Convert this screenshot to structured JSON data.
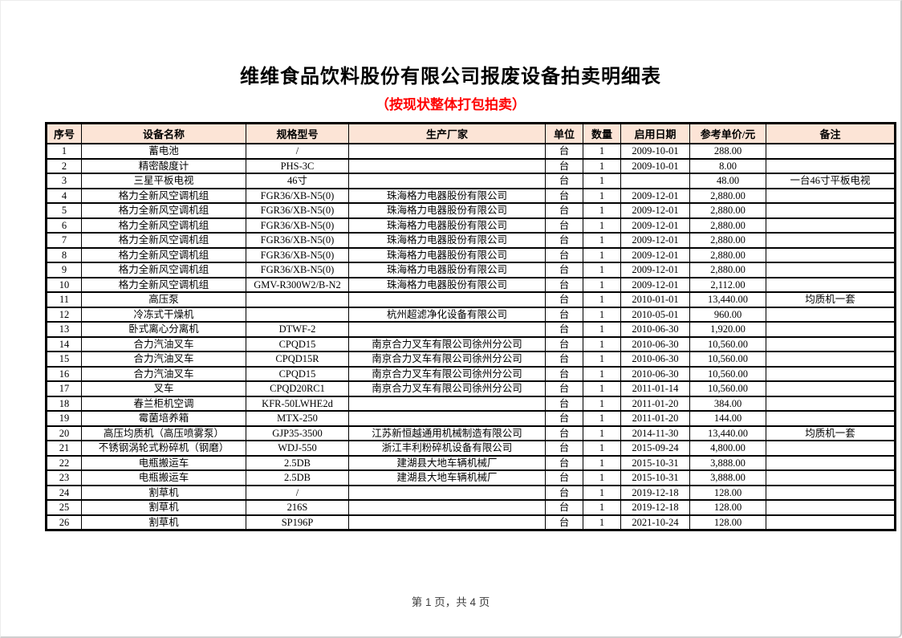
{
  "page": {
    "title": "维维食品饮料股份有限公司报废设备拍卖明细表",
    "subtitle": "（按现状整体打包拍卖）",
    "footer": "第 1 页，共 4 页"
  },
  "colors": {
    "header_fill": "#fce4d6",
    "subtitle_red": "#ff0000",
    "border": "#000000"
  },
  "table": {
    "columns": [
      "序号",
      "设备名称",
      "规格型号",
      "生产厂家",
      "单位",
      "数量",
      "启用日期",
      "参考单价/元",
      "备注"
    ],
    "rows": [
      [
        "1",
        "蓄电池",
        "/",
        "",
        "台",
        "1",
        "2009-10-01",
        "288.00",
        ""
      ],
      [
        "2",
        "精密酸度计",
        "PHS-3C",
        "",
        "台",
        "1",
        "2009-10-01",
        "8.00",
        ""
      ],
      [
        "3",
        "三星平板电视",
        "46寸",
        "",
        "台",
        "1",
        "",
        "48.00",
        "一台46寸平板电视"
      ],
      [
        "4",
        "格力全新风空调机组",
        "FGR36/XB-N5(0)",
        "珠海格力电器股份有限公司",
        "台",
        "1",
        "2009-12-01",
        "2,880.00",
        ""
      ],
      [
        "5",
        "格力全新风空调机组",
        "FGR36/XB-N5(0)",
        "珠海格力电器股份有限公司",
        "台",
        "1",
        "2009-12-01",
        "2,880.00",
        ""
      ],
      [
        "6",
        "格力全新风空调机组",
        "FGR36/XB-N5(0)",
        "珠海格力电器股份有限公司",
        "台",
        "1",
        "2009-12-01",
        "2,880.00",
        ""
      ],
      [
        "7",
        "格力全新风空调机组",
        "FGR36/XB-N5(0)",
        "珠海格力电器股份有限公司",
        "台",
        "1",
        "2009-12-01",
        "2,880.00",
        ""
      ],
      [
        "8",
        "格力全新风空调机组",
        "FGR36/XB-N5(0)",
        "珠海格力电器股份有限公司",
        "台",
        "1",
        "2009-12-01",
        "2,880.00",
        ""
      ],
      [
        "9",
        "格力全新风空调机组",
        "FGR36/XB-N5(0)",
        "珠海格力电器股份有限公司",
        "台",
        "1",
        "2009-12-01",
        "2,880.00",
        ""
      ],
      [
        "10",
        "格力全新风空调机组",
        "GMV-R300W2/B-N2",
        "珠海格力电器股份有限公司",
        "台",
        "1",
        "2009-12-01",
        "2,112.00",
        ""
      ],
      [
        "11",
        "高压泵",
        "",
        "",
        "台",
        "1",
        "2010-01-01",
        "13,440.00",
        "均质机一套"
      ],
      [
        "12",
        "冷冻式干燥机",
        "",
        "杭州超滤净化设备有限公司",
        "台",
        "1",
        "2010-05-01",
        "960.00",
        ""
      ],
      [
        "13",
        "卧式离心分离机",
        "DTWF-2",
        "",
        "台",
        "1",
        "2010-06-30",
        "1,920.00",
        ""
      ],
      [
        "14",
        "合力汽油叉车",
        "CPQD15",
        "南京合力叉车有限公司徐州分公司",
        "台",
        "1",
        "2010-06-30",
        "10,560.00",
        ""
      ],
      [
        "15",
        "合力汽油叉车",
        "CPQD15R",
        "南京合力叉车有限公司徐州分公司",
        "台",
        "1",
        "2010-06-30",
        "10,560.00",
        ""
      ],
      [
        "16",
        "合力汽油叉车",
        "CPQD15",
        "南京合力叉车有限公司徐州分公司",
        "台",
        "1",
        "2010-06-30",
        "10,560.00",
        ""
      ],
      [
        "17",
        "叉车",
        "CPQD20RC1",
        "南京合力叉车有限公司徐州分公司",
        "台",
        "1",
        "2011-01-14",
        "10,560.00",
        ""
      ],
      [
        "18",
        "春兰柜机空调",
        "KFR-50LWHE2d",
        "",
        "台",
        "1",
        "2011-01-20",
        "384.00",
        ""
      ],
      [
        "19",
        "霉菌培养箱",
        "MTX-250",
        "",
        "台",
        "1",
        "2011-01-20",
        "144.00",
        ""
      ],
      [
        "20",
        "高压均质机（高压喷雾泵）",
        "GJP35-3500",
        "江苏新恒越通用机械制造有限公司",
        "台",
        "1",
        "2014-11-30",
        "13,440.00",
        "均质机一套"
      ],
      [
        "21",
        "不锈钢涡轮式粉碎机（钢磨）",
        "WDJ-550",
        "浙江丰利粉碎机设备有限公司",
        "台",
        "1",
        "2015-09-24",
        "4,800.00",
        ""
      ],
      [
        "22",
        "电瓶搬运车",
        "2.5DB",
        "建湖县大地车辆机械厂",
        "台",
        "1",
        "2015-10-31",
        "3,888.00",
        ""
      ],
      [
        "23",
        "电瓶搬运车",
        "2.5DB",
        "建湖县大地车辆机械厂",
        "台",
        "1",
        "2015-10-31",
        "3,888.00",
        ""
      ],
      [
        "24",
        "割草机",
        "/",
        "",
        "台",
        "1",
        "2019-12-18",
        "128.00",
        ""
      ],
      [
        "25",
        "割草机",
        "216S",
        "",
        "台",
        "1",
        "2019-12-18",
        "128.00",
        ""
      ],
      [
        "26",
        "割草机",
        "SP196P",
        "",
        "台",
        "1",
        "2021-10-24",
        "128.00",
        ""
      ]
    ]
  }
}
